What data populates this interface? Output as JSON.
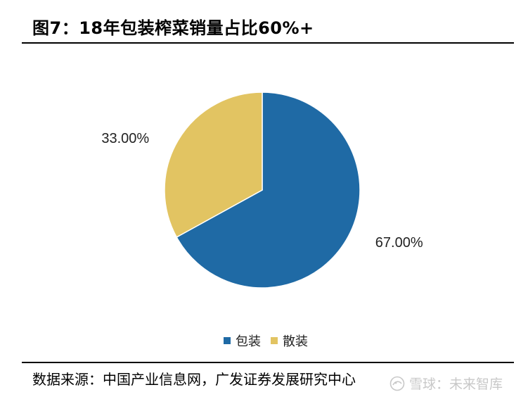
{
  "title": "图7：18年包装榨菜销量占比60%+",
  "source": "数据来源：中国产业信息网，广发证券发展研究中心",
  "watermark": {
    "text": "雪球：未来智库",
    "icon": "snowball-logo-icon"
  },
  "colors": {
    "packaged": "#1f6aa5",
    "bulk": "#e2c462",
    "rule": "#000000"
  },
  "chart_data": {
    "type": "pie",
    "title": "",
    "start_angle_deg": 0,
    "direction": "clockwise",
    "slices": [
      {
        "name": "包装",
        "value": 67.0,
        "label": "67.00%",
        "color": "#1f6aa5"
      },
      {
        "name": "散装",
        "value": 33.0,
        "label": "33.00%",
        "color": "#e2c462"
      }
    ],
    "legend": {
      "position": "bottom",
      "items": [
        "包装",
        "散装"
      ]
    }
  }
}
